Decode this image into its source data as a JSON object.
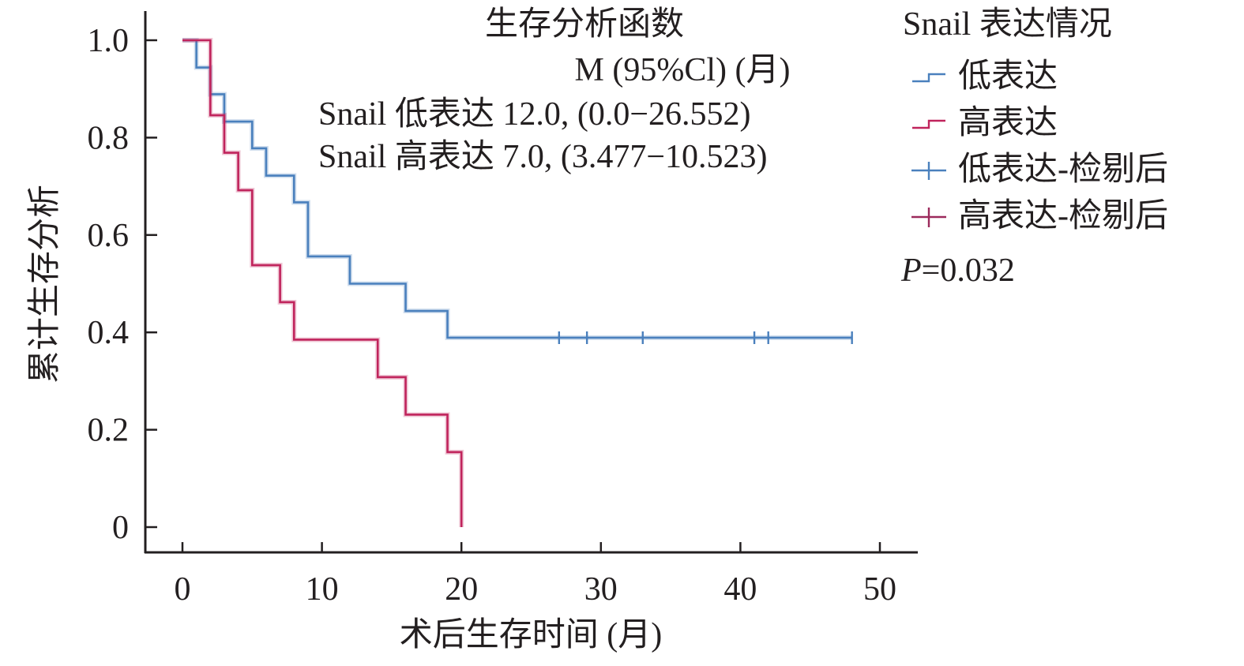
{
  "chart_data": {
    "type": "line",
    "subtype": "kaplan-meier-step",
    "title": "生存分析函数",
    "xlabel": "术后生存时间 (月)",
    "ylabel": "累计生存分析",
    "xlim": [
      0,
      50
    ],
    "ylim": [
      0,
      1.0
    ],
    "x_ticks": [
      0,
      10,
      20,
      30,
      40,
      50
    ],
    "x_tick_labels": [
      "0",
      "10",
      "20",
      "30",
      "40",
      "50"
    ],
    "y_ticks": [
      0,
      0.2,
      0.4,
      0.6,
      0.8,
      1.0
    ],
    "y_tick_labels": [
      "0",
      "0.2",
      "0.4",
      "0.6",
      "0.8",
      "1.0"
    ],
    "grid": false,
    "annotation": {
      "header": "M (95%Cl) (月)",
      "lines": [
        "Snail 低表达 12.0, (0.0−26.552)",
        "Snail 高表达 7.0, (3.477−10.523)"
      ]
    },
    "legend": {
      "title": "Snail 表达情况",
      "position": "right",
      "entries": [
        {
          "label": "低表达",
          "marker": "step",
          "color": "#4a80bd"
        },
        {
          "label": "高表达",
          "marker": "step",
          "color": "#c0245c"
        },
        {
          "label": "低表达-检剔后",
          "marker": "plus",
          "color": "#4a80bd"
        },
        {
          "label": "高表达-检剔后",
          "marker": "plus",
          "color": "#9c2a5c"
        }
      ],
      "p_value_label": "P",
      "p_value_text": "=0.032"
    },
    "series": [
      {
        "name": "低表达",
        "color": "#4a80bd",
        "steps": [
          {
            "x": 0,
            "y": 1.0
          },
          {
            "x": 1,
            "y": 0.944
          },
          {
            "x": 2,
            "y": 0.889
          },
          {
            "x": 3,
            "y": 0.833
          },
          {
            "x": 5,
            "y": 0.778
          },
          {
            "x": 6,
            "y": 0.722
          },
          {
            "x": 8,
            "y": 0.667
          },
          {
            "x": 9,
            "y": 0.556
          },
          {
            "x": 12,
            "y": 0.5
          },
          {
            "x": 16,
            "y": 0.444
          },
          {
            "x": 19,
            "y": 0.389
          }
        ],
        "end_x": 48,
        "censored": [
          27,
          29,
          33,
          41,
          42,
          48
        ]
      },
      {
        "name": "高表达",
        "color": "#c0245c",
        "steps": [
          {
            "x": 0,
            "y": 1.0
          },
          {
            "x": 2,
            "y": 0.846
          },
          {
            "x": 3,
            "y": 0.769
          },
          {
            "x": 4,
            "y": 0.692
          },
          {
            "x": 5,
            "y": 0.538
          },
          {
            "x": 7,
            "y": 0.462
          },
          {
            "x": 8,
            "y": 0.385
          },
          {
            "x": 14,
            "y": 0.308
          },
          {
            "x": 16,
            "y": 0.231
          },
          {
            "x": 19,
            "y": 0.154
          },
          {
            "x": 20,
            "y": 0.0
          }
        ],
        "end_x": 20,
        "censored": []
      }
    ]
  }
}
